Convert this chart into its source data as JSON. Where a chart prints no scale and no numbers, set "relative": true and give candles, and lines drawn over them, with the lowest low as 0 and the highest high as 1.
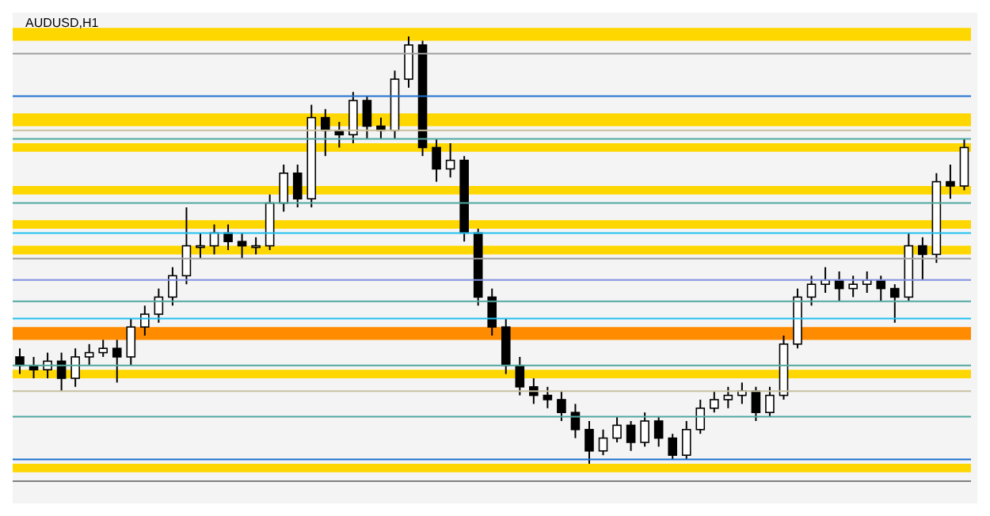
{
  "chart_data": {
    "type": "candlestick",
    "title": "AUDUSD,H1",
    "relative": true,
    "categories": [
      null,
      null,
      null,
      null,
      null,
      null,
      null,
      null,
      null,
      null,
      null,
      null,
      null,
      null,
      null,
      null,
      null,
      null,
      null,
      null,
      null,
      null,
      null,
      null,
      null,
      null,
      null,
      null,
      null,
      null,
      null,
      null,
      null,
      null,
      null,
      null,
      null,
      null,
      null,
      null,
      null,
      null,
      null,
      null,
      null,
      null,
      null,
      null,
      null,
      null,
      null,
      null,
      null,
      null,
      null,
      null,
      null,
      null,
      null,
      null,
      null,
      null,
      null,
      null,
      null,
      null,
      null,
      null,
      null
    ],
    "series": [
      {
        "color": "#000000",
        "ohlc": [
          [
            0.25,
            0.27,
            0.21,
            0.23
          ],
          [
            0.23,
            0.25,
            0.2,
            0.22
          ],
          [
            0.22,
            0.26,
            0.2,
            0.24
          ],
          [
            0.24,
            0.26,
            0.17,
            0.2
          ],
          [
            0.2,
            0.27,
            0.18,
            0.25
          ],
          [
            0.25,
            0.28,
            0.23,
            0.26
          ],
          [
            0.26,
            0.29,
            0.25,
            0.27
          ],
          [
            0.27,
            0.29,
            0.19,
            0.25
          ],
          [
            0.25,
            0.34,
            0.23,
            0.32
          ],
          [
            0.32,
            0.37,
            0.3,
            0.35
          ],
          [
            0.35,
            0.41,
            0.33,
            0.39
          ],
          [
            0.39,
            0.46,
            0.37,
            0.44
          ],
          [
            0.44,
            0.6,
            0.42,
            0.51
          ],
          [
            0.51,
            0.54,
            0.48,
            0.51
          ],
          [
            0.51,
            0.56,
            0.49,
            0.54
          ],
          [
            0.54,
            0.56,
            0.5,
            0.52
          ],
          [
            0.52,
            0.54,
            0.48,
            0.51
          ],
          [
            0.51,
            0.53,
            0.49,
            0.51
          ],
          [
            0.51,
            0.63,
            0.5,
            0.61
          ],
          [
            0.61,
            0.7,
            0.59,
            0.68
          ],
          [
            0.68,
            0.7,
            0.6,
            0.62
          ],
          [
            0.62,
            0.84,
            0.6,
            0.81
          ],
          [
            0.81,
            0.83,
            0.72,
            0.78
          ],
          [
            0.78,
            0.8,
            0.74,
            0.77
          ],
          [
            0.77,
            0.87,
            0.75,
            0.85
          ],
          [
            0.85,
            0.86,
            0.76,
            0.79
          ],
          [
            0.79,
            0.81,
            0.76,
            0.78
          ],
          [
            0.78,
            0.92,
            0.76,
            0.9
          ],
          [
            0.9,
            1.0,
            0.88,
            0.98
          ],
          [
            0.98,
            0.99,
            0.72,
            0.74
          ],
          [
            0.74,
            0.76,
            0.66,
            0.69
          ],
          [
            0.69,
            0.75,
            0.67,
            0.71
          ],
          [
            0.71,
            0.72,
            0.52,
            0.54
          ],
          [
            0.54,
            0.55,
            0.37,
            0.39
          ],
          [
            0.39,
            0.41,
            0.3,
            0.32
          ],
          [
            0.32,
            0.34,
            0.21,
            0.23
          ],
          [
            0.23,
            0.25,
            0.16,
            0.18
          ],
          [
            0.18,
            0.2,
            0.14,
            0.16
          ],
          [
            0.16,
            0.18,
            0.13,
            0.15
          ],
          [
            0.15,
            0.17,
            0.1,
            0.12
          ],
          [
            0.12,
            0.14,
            0.06,
            0.08
          ],
          [
            0.08,
            0.1,
            0.0,
            0.03
          ],
          [
            0.03,
            0.08,
            0.02,
            0.06
          ],
          [
            0.06,
            0.11,
            0.05,
            0.09
          ],
          [
            0.09,
            0.1,
            0.03,
            0.05
          ],
          [
            0.05,
            0.12,
            0.04,
            0.1
          ],
          [
            0.1,
            0.11,
            0.04,
            0.06
          ],
          [
            0.06,
            0.07,
            0.01,
            0.02
          ],
          [
            0.02,
            0.1,
            0.01,
            0.08
          ],
          [
            0.08,
            0.15,
            0.07,
            0.13
          ],
          [
            0.13,
            0.17,
            0.12,
            0.15
          ],
          [
            0.15,
            0.18,
            0.13,
            0.16
          ],
          [
            0.16,
            0.19,
            0.14,
            0.17
          ],
          [
            0.17,
            0.18,
            0.1,
            0.12
          ],
          [
            0.12,
            0.18,
            0.11,
            0.16
          ],
          [
            0.16,
            0.3,
            0.15,
            0.28
          ],
          [
            0.28,
            0.41,
            0.27,
            0.39
          ],
          [
            0.39,
            0.44,
            0.37,
            0.42
          ],
          [
            0.42,
            0.46,
            0.4,
            0.43
          ],
          [
            0.43,
            0.45,
            0.38,
            0.41
          ],
          [
            0.41,
            0.44,
            0.39,
            0.42
          ],
          [
            0.42,
            0.45,
            0.4,
            0.43
          ],
          [
            0.43,
            0.44,
            0.38,
            0.41
          ],
          [
            0.41,
            0.42,
            0.33,
            0.39
          ],
          [
            0.39,
            0.54,
            0.38,
            0.51
          ],
          [
            0.51,
            0.53,
            0.43,
            0.49
          ],
          [
            0.49,
            0.68,
            0.47,
            0.66
          ],
          [
            0.66,
            0.7,
            0.62,
            0.65
          ],
          [
            0.65,
            0.76,
            0.64,
            0.74
          ]
        ]
      }
    ],
    "bands": [
      {
        "axis": "y",
        "from": 0.99,
        "to": 1.02,
        "color": "#ffd700"
      },
      {
        "axis": "y",
        "from": 0.79,
        "to": 0.82,
        "color": "#ffd700"
      },
      {
        "axis": "y",
        "from": 0.73,
        "to": 0.75,
        "color": "#ffd700"
      },
      {
        "axis": "y",
        "from": 0.63,
        "to": 0.65,
        "color": "#ffd700"
      },
      {
        "axis": "y",
        "from": 0.55,
        "to": 0.57,
        "color": "#ffd700"
      },
      {
        "axis": "y",
        "from": 0.49,
        "to": 0.51,
        "color": "#ffd700"
      },
      {
        "axis": "y",
        "from": 0.29,
        "to": 0.32,
        "color": "#ff8c00"
      },
      {
        "axis": "y",
        "from": 0.2,
        "to": 0.22,
        "color": "#ffd700"
      },
      {
        "axis": "y",
        "from": -0.02,
        "to": 0.0,
        "color": "#ffd700"
      }
    ],
    "ref_lines": [
      {
        "axis": "y",
        "value": 0.96,
        "color": "#a0a0a0"
      },
      {
        "axis": "y",
        "value": 0.86,
        "color": "#1e6fd0"
      },
      {
        "axis": "y",
        "value": 0.78,
        "color": "#c8c0a0"
      },
      {
        "axis": "y",
        "value": 0.76,
        "color": "#50a8a0"
      },
      {
        "axis": "y",
        "value": 0.61,
        "color": "#50a8a0"
      },
      {
        "axis": "y",
        "value": 0.54,
        "color": "#20c0f0"
      },
      {
        "axis": "y",
        "value": 0.48,
        "color": "#a0a0a0"
      },
      {
        "axis": "y",
        "value": 0.43,
        "color": "#8090e0"
      },
      {
        "axis": "y",
        "value": 0.38,
        "color": "#50a8a0"
      },
      {
        "axis": "y",
        "value": 0.34,
        "color": "#20c0f0"
      },
      {
        "axis": "y",
        "value": 0.23,
        "color": "#50a8a0"
      },
      {
        "axis": "y",
        "value": 0.17,
        "color": "#c8c0a0"
      },
      {
        "axis": "y",
        "value": 0.11,
        "color": "#50a8a0"
      },
      {
        "axis": "y",
        "value": 0.01,
        "color": "#1e6fd0"
      }
    ]
  }
}
